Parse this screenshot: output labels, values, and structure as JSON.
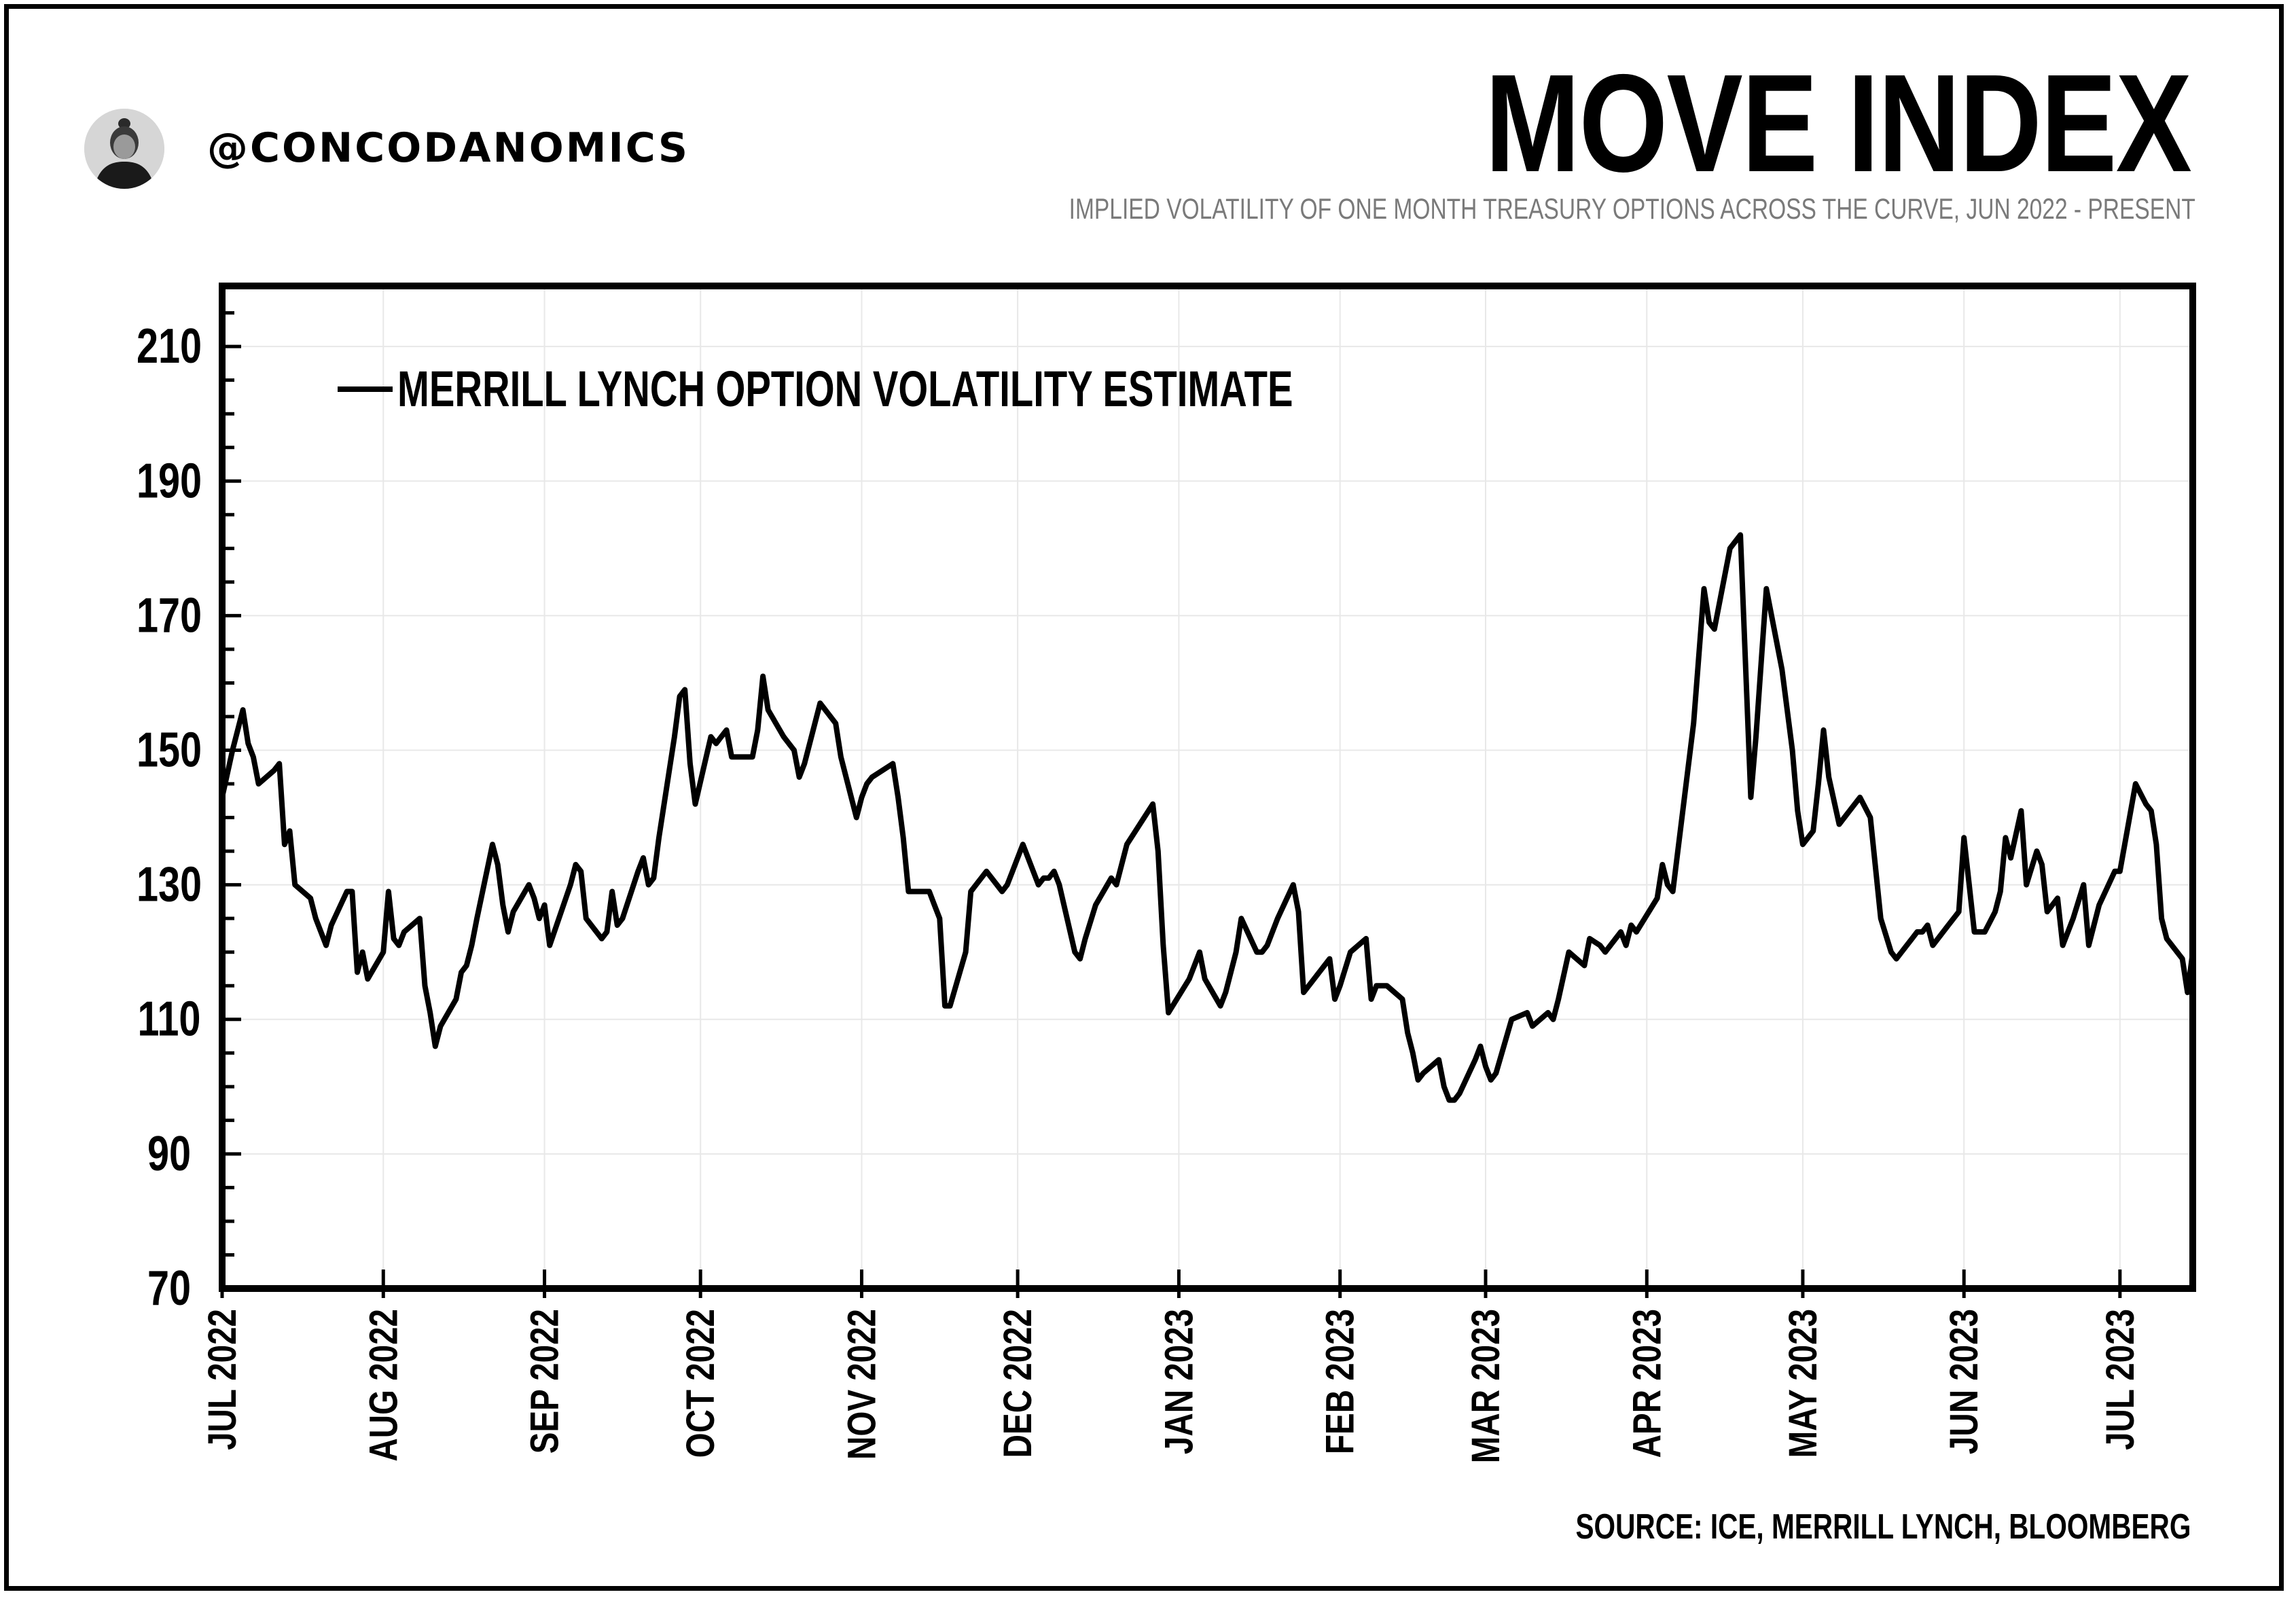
{
  "handle": "@CONCODANOMICS",
  "title": "MOVE INDEX",
  "subtitle": "IMPLIED VOLATILITY OF ONE MONTH TREASURY OPTIONS ACROSS THE CURVE, JUN 2022 - PRESENT",
  "source": "SOURCE: ICE, MERRILL LYNCH, BLOOMBERG",
  "icons": {
    "avatar": "author-avatar-icon"
  },
  "chart_data": {
    "type": "line",
    "title": "MOVE INDEX",
    "xlabel": "",
    "ylabel": "",
    "ylim": [
      70,
      219
    ],
    "yticks": [
      70,
      90,
      110,
      130,
      150,
      170,
      190,
      210
    ],
    "xlim": [
      "2022-07-01",
      "2023-07-15"
    ],
    "xticks": [
      {
        "date": "2022-07-01",
        "label": "JUL 2022"
      },
      {
        "date": "2022-08-01",
        "label": "AUG 2022"
      },
      {
        "date": "2022-09-01",
        "label": "SEP 2022"
      },
      {
        "date": "2022-10-01",
        "label": "OCT 2022"
      },
      {
        "date": "2022-11-01",
        "label": "NOV 2022"
      },
      {
        "date": "2022-12-01",
        "label": "DEC 2022"
      },
      {
        "date": "2023-01-01",
        "label": "JAN 2023"
      },
      {
        "date": "2023-02-01",
        "label": "FEB 2023"
      },
      {
        "date": "2023-03-01",
        "label": "MAR 2023"
      },
      {
        "date": "2023-04-01",
        "label": "APR 2023"
      },
      {
        "date": "2023-05-01",
        "label": "MAY 2023"
      },
      {
        "date": "2023-06-01",
        "label": "JUN 2023"
      },
      {
        "date": "2023-07-01",
        "label": "JUL 2023"
      }
    ],
    "grid": true,
    "legend_position": "top-left",
    "color": "#000000",
    "series": [
      {
        "name": "MERRILL LYNCH OPTION VOLATILITY ESTIMATE",
        "points": [
          [
            "2022-07-01",
            143
          ],
          [
            "2022-07-03",
            150
          ],
          [
            "2022-07-05",
            156
          ],
          [
            "2022-07-06",
            151
          ],
          [
            "2022-07-07",
            149
          ],
          [
            "2022-07-08",
            145
          ],
          [
            "2022-07-11",
            147
          ],
          [
            "2022-07-12",
            148
          ],
          [
            "2022-07-13",
            136
          ],
          [
            "2022-07-14",
            138
          ],
          [
            "2022-07-15",
            130
          ],
          [
            "2022-07-18",
            128
          ],
          [
            "2022-07-19",
            125
          ],
          [
            "2022-07-21",
            121
          ],
          [
            "2022-07-22",
            124
          ],
          [
            "2022-07-25",
            129
          ],
          [
            "2022-07-26",
            129
          ],
          [
            "2022-07-27",
            117
          ],
          [
            "2022-07-28",
            120
          ],
          [
            "2022-07-29",
            116
          ],
          [
            "2022-08-01",
            120
          ],
          [
            "2022-08-02",
            129
          ],
          [
            "2022-08-03",
            122
          ],
          [
            "2022-08-04",
            121
          ],
          [
            "2022-08-05",
            123
          ],
          [
            "2022-08-08",
            125
          ],
          [
            "2022-08-09",
            115
          ],
          [
            "2022-08-10",
            111
          ],
          [
            "2022-08-11",
            106
          ],
          [
            "2022-08-12",
            109
          ],
          [
            "2022-08-15",
            113
          ],
          [
            "2022-08-16",
            117
          ],
          [
            "2022-08-17",
            118
          ],
          [
            "2022-08-18",
            121
          ],
          [
            "2022-08-19",
            125
          ],
          [
            "2022-08-22",
            136
          ],
          [
            "2022-08-23",
            133
          ],
          [
            "2022-08-24",
            127
          ],
          [
            "2022-08-25",
            123
          ],
          [
            "2022-08-26",
            126
          ],
          [
            "2022-08-29",
            130
          ],
          [
            "2022-08-30",
            128
          ],
          [
            "2022-08-31",
            125
          ],
          [
            "2022-09-01",
            127
          ],
          [
            "2022-09-02",
            121
          ],
          [
            "2022-09-06",
            130
          ],
          [
            "2022-09-07",
            133
          ],
          [
            "2022-09-08",
            132
          ],
          [
            "2022-09-09",
            125
          ],
          [
            "2022-09-12",
            122
          ],
          [
            "2022-09-13",
            123
          ],
          [
            "2022-09-14",
            129
          ],
          [
            "2022-09-15",
            124
          ],
          [
            "2022-09-16",
            125
          ],
          [
            "2022-09-19",
            132
          ],
          [
            "2022-09-20",
            134
          ],
          [
            "2022-09-21",
            130
          ],
          [
            "2022-09-22",
            131
          ],
          [
            "2022-09-23",
            137
          ],
          [
            "2022-09-26",
            152
          ],
          [
            "2022-09-27",
            158
          ],
          [
            "2022-09-28",
            159
          ],
          [
            "2022-09-29",
            148
          ],
          [
            "2022-09-30",
            142
          ],
          [
            "2022-10-03",
            152
          ],
          [
            "2022-10-04",
            151
          ],
          [
            "2022-10-05",
            152
          ],
          [
            "2022-10-06",
            153
          ],
          [
            "2022-10-07",
            149
          ],
          [
            "2022-10-10",
            149
          ],
          [
            "2022-10-11",
            149
          ],
          [
            "2022-10-12",
            153
          ],
          [
            "2022-10-13",
            161
          ],
          [
            "2022-10-14",
            156
          ],
          [
            "2022-10-17",
            152
          ],
          [
            "2022-10-18",
            151
          ],
          [
            "2022-10-19",
            150
          ],
          [
            "2022-10-20",
            146
          ],
          [
            "2022-10-21",
            148
          ],
          [
            "2022-10-24",
            157
          ],
          [
            "2022-10-25",
            156
          ],
          [
            "2022-10-27",
            154
          ],
          [
            "2022-10-28",
            149
          ],
          [
            "2022-10-31",
            140
          ],
          [
            "2022-11-01",
            143
          ],
          [
            "2022-11-02",
            145
          ],
          [
            "2022-11-03",
            146
          ],
          [
            "2022-11-07",
            148
          ],
          [
            "2022-11-08",
            143
          ],
          [
            "2022-11-09",
            137
          ],
          [
            "2022-11-10",
            129
          ],
          [
            "2022-11-14",
            129
          ],
          [
            "2022-11-15",
            127
          ],
          [
            "2022-11-16",
            125
          ],
          [
            "2022-11-17",
            112
          ],
          [
            "2022-11-18",
            112
          ],
          [
            "2022-11-21",
            120
          ],
          [
            "2022-11-22",
            129
          ],
          [
            "2022-11-23",
            130
          ],
          [
            "2022-11-25",
            132
          ],
          [
            "2022-11-28",
            129
          ],
          [
            "2022-11-29",
            130
          ],
          [
            "2022-11-30",
            132
          ],
          [
            "2022-12-01",
            134
          ],
          [
            "2022-12-02",
            136
          ],
          [
            "2022-12-05",
            130
          ],
          [
            "2022-12-06",
            131
          ],
          [
            "2022-12-07",
            131
          ],
          [
            "2022-12-08",
            132
          ],
          [
            "2022-12-09",
            130
          ],
          [
            "2022-12-12",
            120
          ],
          [
            "2022-12-13",
            119
          ],
          [
            "2022-12-14",
            122
          ],
          [
            "2022-12-16",
            127
          ],
          [
            "2022-12-19",
            131
          ],
          [
            "2022-12-20",
            130
          ],
          [
            "2022-12-21",
            133
          ],
          [
            "2022-12-22",
            136
          ],
          [
            "2022-12-27",
            142
          ],
          [
            "2022-12-28",
            135
          ],
          [
            "2022-12-29",
            121
          ],
          [
            "2022-12-30",
            111
          ],
          [
            "2023-01-03",
            116
          ],
          [
            "2023-01-05",
            120
          ],
          [
            "2023-01-06",
            116
          ],
          [
            "2023-01-09",
            112
          ],
          [
            "2023-01-10",
            114
          ],
          [
            "2023-01-12",
            120
          ],
          [
            "2023-01-13",
            125
          ],
          [
            "2023-01-16",
            120
          ],
          [
            "2023-01-17",
            120
          ],
          [
            "2023-01-18",
            121
          ],
          [
            "2023-01-20",
            125
          ],
          [
            "2023-01-23",
            130
          ],
          [
            "2023-01-24",
            126
          ],
          [
            "2023-01-25",
            114
          ],
          [
            "2023-01-27",
            116
          ],
          [
            "2023-01-30",
            119
          ],
          [
            "2023-01-31",
            113
          ],
          [
            "2023-02-01",
            115
          ],
          [
            "2023-02-03",
            120
          ],
          [
            "2023-02-06",
            122
          ],
          [
            "2023-02-07",
            113
          ],
          [
            "2023-02-08",
            115
          ],
          [
            "2023-02-09",
            115
          ],
          [
            "2023-02-10",
            115
          ],
          [
            "2023-02-13",
            113
          ],
          [
            "2023-02-14",
            108
          ],
          [
            "2023-02-15",
            105
          ],
          [
            "2023-02-16",
            101
          ],
          [
            "2023-02-17",
            102
          ],
          [
            "2023-02-20",
            104
          ],
          [
            "2023-02-21",
            100
          ],
          [
            "2023-02-22",
            98
          ],
          [
            "2023-02-23",
            98
          ],
          [
            "2023-02-24",
            99
          ],
          [
            "2023-02-27",
            104
          ],
          [
            "2023-02-28",
            106
          ],
          [
            "2023-03-01",
            103
          ],
          [
            "2023-03-02",
            101
          ],
          [
            "2023-03-03",
            102
          ],
          [
            "2023-03-06",
            110
          ],
          [
            "2023-03-09",
            111
          ],
          [
            "2023-03-10",
            109
          ],
          [
            "2023-03-13",
            111
          ],
          [
            "2023-03-14",
            110
          ],
          [
            "2023-03-15",
            113
          ],
          [
            "2023-03-17",
            120
          ],
          [
            "2023-03-20",
            118
          ],
          [
            "2023-03-21",
            122
          ],
          [
            "2023-03-23",
            121
          ],
          [
            "2023-03-24",
            120
          ],
          [
            "2023-03-27",
            123
          ],
          [
            "2023-03-28",
            121
          ],
          [
            "2023-03-29",
            124
          ],
          [
            "2023-03-30",
            123
          ],
          [
            "2023-04-03",
            128
          ],
          [
            "2023-04-04",
            133
          ],
          [
            "2023-04-05",
            130
          ],
          [
            "2023-04-06",
            129
          ],
          [
            "2023-04-10",
            154
          ],
          [
            "2023-04-12",
            174
          ],
          [
            "2023-04-13",
            169
          ],
          [
            "2023-04-14",
            168
          ],
          [
            "2023-04-17",
            180
          ],
          [
            "2023-04-18",
            181
          ],
          [
            "2023-04-19",
            182
          ],
          [
            "2023-04-21",
            143
          ],
          [
            "2023-04-22",
            152
          ],
          [
            "2023-04-24",
            174
          ],
          [
            "2023-04-27",
            162
          ],
          [
            "2023-04-29",
            150
          ],
          [
            "2023-04-30",
            141
          ],
          [
            "2023-05-01",
            136
          ],
          [
            "2023-05-03",
            138
          ],
          [
            "2023-05-04",
            145
          ],
          [
            "2023-05-05",
            153
          ],
          [
            "2023-05-06",
            146
          ],
          [
            "2023-05-08",
            139
          ],
          [
            "2023-05-10",
            141
          ],
          [
            "2023-05-12",
            143
          ],
          [
            "2023-05-14",
            140
          ],
          [
            "2023-05-16",
            125
          ],
          [
            "2023-05-18",
            120
          ],
          [
            "2023-05-19",
            119
          ],
          [
            "2023-05-21",
            121
          ],
          [
            "2023-05-22",
            122
          ],
          [
            "2023-05-23",
            123
          ],
          [
            "2023-05-24",
            123
          ],
          [
            "2023-05-25",
            124
          ],
          [
            "2023-05-26",
            121
          ],
          [
            "2023-05-29",
            124
          ],
          [
            "2023-05-31",
            126
          ],
          [
            "2023-06-01",
            137
          ],
          [
            "2023-06-02",
            130
          ],
          [
            "2023-06-03",
            123
          ],
          [
            "2023-06-05",
            123
          ],
          [
            "2023-06-07",
            126
          ],
          [
            "2023-06-08",
            129
          ],
          [
            "2023-06-09",
            137
          ],
          [
            "2023-06-10",
            134
          ],
          [
            "2023-06-12",
            141
          ],
          [
            "2023-06-13",
            130
          ],
          [
            "2023-06-15",
            135
          ],
          [
            "2023-06-16",
            133
          ],
          [
            "2023-06-17",
            126
          ],
          [
            "2023-06-19",
            128
          ],
          [
            "2023-06-20",
            121
          ],
          [
            "2023-06-22",
            125
          ],
          [
            "2023-06-24",
            130
          ],
          [
            "2023-06-25",
            121
          ],
          [
            "2023-06-27",
            127
          ],
          [
            "2023-06-30",
            132
          ],
          [
            "2023-07-01",
            132
          ],
          [
            "2023-07-04",
            145
          ],
          [
            "2023-07-06",
            142
          ],
          [
            "2023-07-07",
            141
          ],
          [
            "2023-07-08",
            136
          ],
          [
            "2023-07-09",
            125
          ],
          [
            "2023-07-10",
            122
          ],
          [
            "2023-07-13",
            119
          ],
          [
            "2023-07-14",
            114
          ],
          [
            "2023-07-15",
            120
          ]
        ]
      }
    ]
  }
}
